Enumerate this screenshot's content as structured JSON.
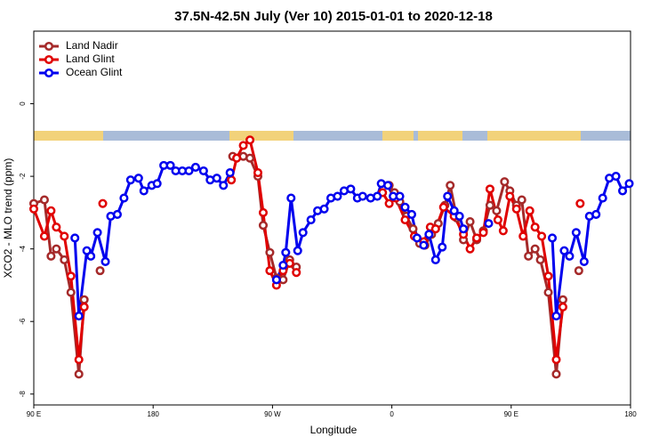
{
  "chart_data": {
    "type": "line",
    "title": "37.5N-42.5N July (Ver 10)   2015-01-01 to 2020-12-18",
    "x_label": "Longitude",
    "y_label": "XCO2 - MLO trend (ppm)",
    "xlim": [
      90,
      540
    ],
    "xticks": [
      {
        "value": 90,
        "label": "90 E"
      },
      {
        "value": 180,
        "label": "180"
      },
      {
        "value": 270,
        "label": "90 W"
      },
      {
        "value": 360,
        "label": "0"
      },
      {
        "value": 450,
        "label": "90 E"
      },
      {
        "value": 540,
        "label": "180"
      }
    ],
    "ylim": [
      -8.3,
      2
    ],
    "yticks": [
      0,
      -2,
      -4,
      -6,
      -8
    ],
    "legend": "top-left",
    "series": [
      {
        "name": "Land Nadir",
        "color": "#a52a2a",
        "x": [
          90,
          98,
          103,
          107,
          113,
          118,
          124,
          128,
          null,
          140,
          null,
          240,
          248,
          253,
          259,
          263,
          268,
          273,
          278,
          283,
          288,
          null,
          358,
          362,
          366,
          371,
          376,
          381,
          385,
          390,
          395,
          400,
          404,
          409,
          414,
          419,
          424,
          429,
          434,
          439,
          445,
          449,
          454,
          458,
          463,
          468,
          472,
          478,
          484,
          489,
          null,
          501
        ],
        "values": [
          -2.75,
          -2.65,
          -4.2,
          -4.0,
          -4.3,
          -5.2,
          -7.45,
          -5.4,
          null,
          -4.6,
          null,
          -1.45,
          -1.45,
          -1.5,
          -2.0,
          -3.35,
          -4.1,
          -4.8,
          -4.85,
          -4.3,
          -4.5,
          null,
          -2.25,
          -2.45,
          -2.7,
          -3.1,
          -3.45,
          -3.85,
          -3.9,
          -3.6,
          -3.3,
          -2.8,
          -2.25,
          -3.15,
          -3.75,
          -3.25,
          -3.75,
          -3.5,
          -2.8,
          -2.95,
          -2.15,
          -2.4,
          -2.8,
          -2.65,
          -4.2,
          -4.0,
          -4.3,
          -5.2,
          -7.45,
          -5.4,
          null,
          -4.6
        ]
      },
      {
        "name": "Land Glint",
        "color": "#e00000",
        "x": [
          90,
          98,
          103,
          107,
          113,
          118,
          124,
          128,
          null,
          142,
          null,
          239,
          243,
          248,
          253,
          259,
          263,
          268,
          273,
          278,
          283,
          288,
          null,
          353,
          358,
          363,
          370,
          377,
          384,
          389,
          393,
          399,
          407,
          414,
          419,
          424,
          429,
          434,
          440,
          444,
          449,
          454,
          459,
          464,
          468,
          473,
          478,
          484,
          489,
          null,
          502
        ],
        "values": [
          -2.9,
          -3.65,
          -2.95,
          -3.4,
          -3.65,
          -4.75,
          -7.05,
          -5.6,
          null,
          -2.75,
          null,
          -2.1,
          -1.5,
          -1.15,
          -1.0,
          -1.9,
          -3.0,
          -4.6,
          -5.0,
          -4.6,
          -4.4,
          -4.65,
          null,
          -2.45,
          -2.75,
          -2.6,
          -3.2,
          -3.65,
          -3.8,
          -3.4,
          -3.45,
          -2.85,
          -3.1,
          -3.6,
          -4.0,
          -3.7,
          -3.55,
          -2.35,
          -3.2,
          -3.5,
          -2.55,
          -2.9,
          -3.65,
          -2.95,
          -3.4,
          -3.65,
          -4.75,
          -7.05,
          -5.6,
          null,
          -2.75
        ]
      },
      {
        "name": "Ocean Glint",
        "color": "#0000ee",
        "x": [
          121,
          124,
          130,
          133,
          138,
          144,
          148,
          153,
          158,
          163,
          169,
          173,
          179,
          183,
          188,
          193,
          197,
          202,
          207,
          212,
          218,
          223,
          228,
          233,
          238,
          null,
          273,
          278,
          280,
          284,
          289,
          293,
          299,
          304,
          309,
          314,
          319,
          324,
          329,
          334,
          338,
          344,
          349,
          352,
          357,
          361,
          366,
          370,
          375,
          379,
          384,
          388,
          393,
          398,
          402,
          407,
          411,
          414,
          null,
          433,
          null,
          481,
          484,
          490,
          494,
          499,
          505,
          509,
          514,
          519,
          524,
          529,
          534,
          539
        ],
        "values": [
          -3.7,
          -5.85,
          -4.05,
          -4.2,
          -3.55,
          -4.35,
          -3.1,
          -3.05,
          -2.6,
          -2.1,
          -2.05,
          -2.4,
          -2.25,
          -2.2,
          -1.7,
          -1.7,
          -1.85,
          -1.85,
          -1.85,
          -1.75,
          -1.85,
          -2.1,
          -2.05,
          -2.25,
          -1.9,
          null,
          -4.85,
          -4.45,
          -4.1,
          -2.6,
          -4.05,
          -3.55,
          -3.2,
          -2.95,
          -2.9,
          -2.6,
          -2.55,
          -2.4,
          -2.35,
          -2.6,
          -2.55,
          -2.6,
          -2.55,
          -2.2,
          -2.25,
          -2.55,
          -2.55,
          -2.85,
          -3.05,
          -3.7,
          -3.9,
          -3.6,
          -4.3,
          -3.95,
          -2.55,
          -2.95,
          -3.1,
          -3.45,
          null,
          -3.3,
          null,
          -3.7,
          -5.85,
          -4.05,
          -4.2,
          -3.55,
          -4.35,
          -3.1,
          -3.05,
          -2.6,
          -2.05,
          -2.0,
          -2.4,
          -2.2
        ]
      }
    ]
  }
}
